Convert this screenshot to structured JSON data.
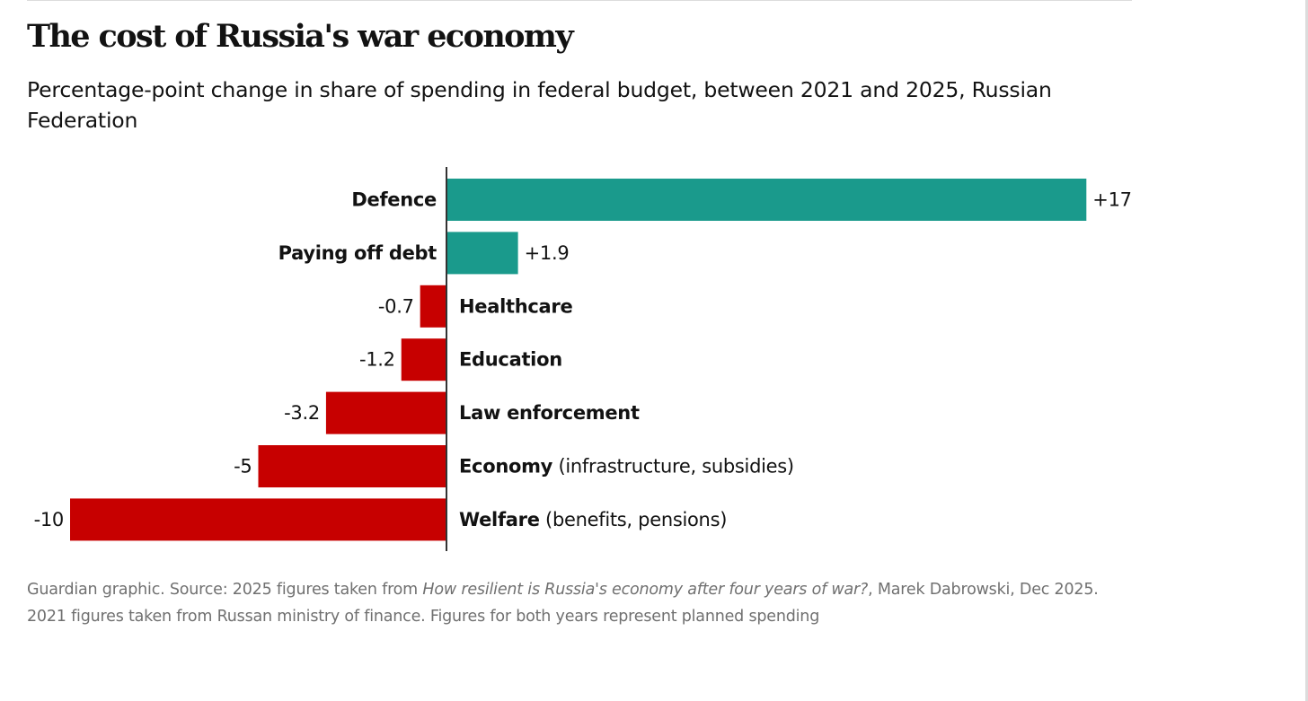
{
  "header": {
    "title": "The cost of Russia's war economy",
    "subtitle": "Percentage-point change in share of spending in federal budget, between 2021 and 2025, Russian Federation"
  },
  "colors": {
    "positive": "#1a9a8c",
    "negative": "#c70000",
    "axis": "#333333",
    "text": "#121212",
    "source_text": "#707070"
  },
  "chart_data": {
    "type": "bar",
    "orientation": "horizontal",
    "title": "The cost of Russia's war economy",
    "subtitle": "Percentage-point change in share of spending in federal budget, between 2021 and 2025, Russian Federation",
    "xlabel": "",
    "ylabel": "",
    "grid": false,
    "xlim": [
      -10,
      17
    ],
    "categories": [
      "Defence",
      "Paying off debt",
      "Healthcare",
      "Education",
      "Law enforcement",
      "Economy",
      "Welfare"
    ],
    "category_notes": [
      "",
      "",
      "",
      "",
      "",
      "(infrastructure, subsidies)",
      "(benefits, pensions)"
    ],
    "values": [
      17,
      1.9,
      -0.7,
      -1.2,
      -3.2,
      -5,
      -10
    ],
    "value_labels": [
      "+17",
      "+1.9",
      "-0.7",
      "-1.2",
      "-3.2",
      "-5",
      "-10"
    ]
  },
  "source": {
    "prefix": "Guardian graphic. Source: 2025 figures taken from ",
    "title_italic": "How resilient is Russia's economy after four years of war?",
    "suffix": ", Marek Dabrowski, Dec 2025. 2021 figures taken from Russan ministry of finance. Figures for both years represent planned spending"
  }
}
